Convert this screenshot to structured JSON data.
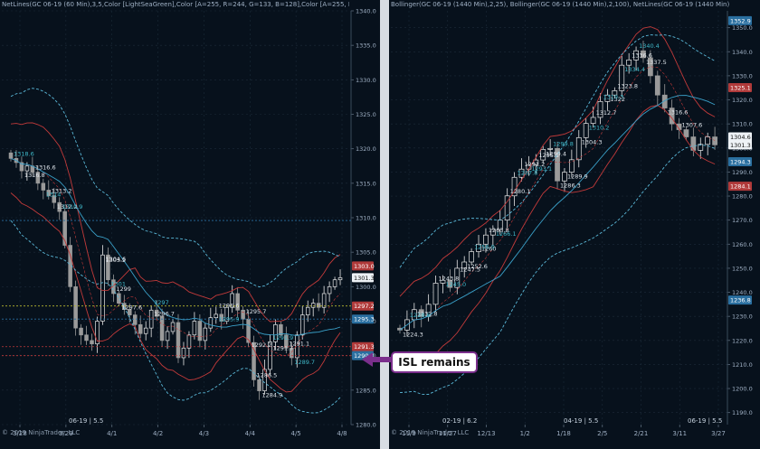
{
  "colors": {
    "background": "#07111c",
    "grid": "#1c2a38",
    "bull": "#e8e8e8",
    "bear": "#9a9a9a",
    "band_outer": "#c23a3a",
    "band_mid": "#3aa0c8",
    "band_cyan": "#5ab8d8",
    "label_red": "#b03a3a",
    "label_blue": "#2a6fa0",
    "callout_border": "#7b2f8c"
  },
  "left": {
    "title": "NetLines(GC 06-19 (60 Min),3,5,Color [LightSeaGreen],Color [A=255, R=244, G=133, B=128],Color [A=255, R=0, G=131, B...",
    "copyright": "© 2019 NinjaTrader, LLC",
    "period": "06-19 | 5.5",
    "x_labels": [
      "3/28",
      "3/29",
      "4/1",
      "4/2",
      "4/3",
      "4/4",
      "4/5",
      "4/8"
    ],
    "y_labels": [
      "1340.0",
      "1335.0",
      "1330.0",
      "1325.0",
      "1320.0",
      "1315.0",
      "1310.0",
      "1305.0",
      "1300.0",
      "1295.0",
      "1290.0",
      "1285.0",
      "1280.0"
    ],
    "price_tags": [
      "1303.0",
      "1301.3",
      "1297.2",
      "1295.3",
      "1291.3",
      "1290.0"
    ],
    "annotations": [
      "1318.6",
      "1316.8",
      "1316.6",
      "1314",
      "1313.2",
      "1312.2",
      "1310.9",
      "1304.6",
      "1303.2",
      "1301",
      "1299",
      "1297.6",
      "1297",
      "1296.7",
      "1296.6",
      "1295.9",
      "1295.7",
      "1292.2",
      "1291.9",
      "1291.7",
      "1291.1",
      "1289.7",
      "1286.5",
      "1284.9"
    ],
    "chart_data": {
      "type": "candlestick",
      "ylim": [
        1280,
        1340
      ],
      "x_ticks": [
        "3/28",
        "3/29",
        "4/1",
        "4/2",
        "4/3",
        "4/4",
        "4/5",
        "4/8"
      ],
      "close": [
        1318.6,
        1318,
        1316.8,
        1317.5,
        1316.6,
        1315,
        1314,
        1313.2,
        1312.2,
        1310.9,
        1306,
        1300,
        1294,
        1293,
        1292.2,
        1291.7,
        1295,
        1304.6,
        1301,
        1299,
        1297.6,
        1296.7,
        1295.9,
        1294.5,
        1293.2,
        1294,
        1296.6,
        1295.7,
        1292.2,
        1293.5,
        1294.8,
        1289.7,
        1291.1,
        1293,
        1295,
        1292.2,
        1294,
        1295.5,
        1296,
        1295,
        1297,
        1299,
        1296.6,
        1295.3,
        1291.9,
        1286.5,
        1284.9,
        1288,
        1292,
        1294.5,
        1293,
        1291.1,
        1289.7,
        1293,
        1295.9,
        1297,
        1297.6,
        1297,
        1299,
        1300,
        1301,
        1301.3
      ],
      "price_tags": [
        1303.0,
        1301.3,
        1297.2,
        1295.3,
        1291.3,
        1290.0
      ],
      "levels": [
        1309.6,
        1297.2,
        1295.3,
        1291.3,
        1290.0
      ]
    }
  },
  "right": {
    "title": "Bollinger(GC 06-19 (1440 Min),2,25), Bollinger(GC 06-19 (1440 Min),2,100), NetLines(GC 06-19 (1440 Min),3,5,Color [LightSeaG...",
    "copyright": "© 2019 NinjaTrader, LLC",
    "periods": [
      "02-19 | 6.2",
      "04-19 | 5.5",
      "06-19 | 5.5"
    ],
    "x_labels": [
      "11/9",
      "11/27",
      "12/13",
      "1/2",
      "1/18",
      "2/5",
      "2/21",
      "3/11",
      "3/27"
    ],
    "y_labels": [
      "1350.0",
      "1340.0",
      "1330.0",
      "1320.0",
      "1310.0",
      "1300.0",
      "1290.0",
      "1280.0",
      "1270.0",
      "1260.0",
      "1250.0",
      "1240.0",
      "1230.0",
      "1220.0",
      "1210.0",
      "1200.0",
      "1190.0"
    ],
    "price_tags": [
      "1352.9",
      "1325.1",
      "1304.6",
      "1301.3",
      "1294.3",
      "1284.1",
      "1236.8"
    ],
    "annotations": [
      "1340.4",
      "1337.5",
      "1336.6",
      "1334.4",
      "1323.8",
      "1322",
      "1319.3",
      "1316.6",
      "1312.7",
      "1310.2",
      "1307.6",
      "1304.3",
      "1299.8",
      "1299.4",
      "1295.1",
      "1293.1",
      "1291.2",
      "1289.9",
      "1287.8",
      "1286.3",
      "1280.1",
      "1266.1",
      "1263.8",
      "1260",
      "1256.9",
      "1252.6",
      "1247.5",
      "1245.0",
      "1243.8",
      "1232.8",
      "1228.6",
      "1224.3"
    ],
    "chart_data": {
      "type": "candlestick",
      "ylim": [
        1185,
        1357
      ],
      "x_ticks": [
        "11/9",
        "11/27",
        "12/13",
        "1/2",
        "1/18",
        "2/5",
        "2/21",
        "3/11",
        "3/27"
      ],
      "close": [
        1224.3,
        1228.6,
        1232.8,
        1230,
        1235,
        1243.8,
        1245,
        1242,
        1250,
        1252.6,
        1256.9,
        1260,
        1263.8,
        1266.1,
        1270,
        1280.1,
        1287.8,
        1291.2,
        1293.1,
        1295,
        1299.4,
        1299.8,
        1286.3,
        1289.9,
        1295.1,
        1304.3,
        1310.2,
        1312.7,
        1319.3,
        1322,
        1323.8,
        1334.4,
        1336.6,
        1340.4,
        1337.5,
        1330,
        1322,
        1316.6,
        1310,
        1307.6,
        1304.6,
        1299,
        1301.5,
        1304.6,
        1301.3
      ],
      "price_tags": [
        1352.9,
        1325.1,
        1304.6,
        1301.3,
        1294.3,
        1284.1,
        1236.8
      ]
    }
  },
  "callout": {
    "text": "ISL remains"
  }
}
